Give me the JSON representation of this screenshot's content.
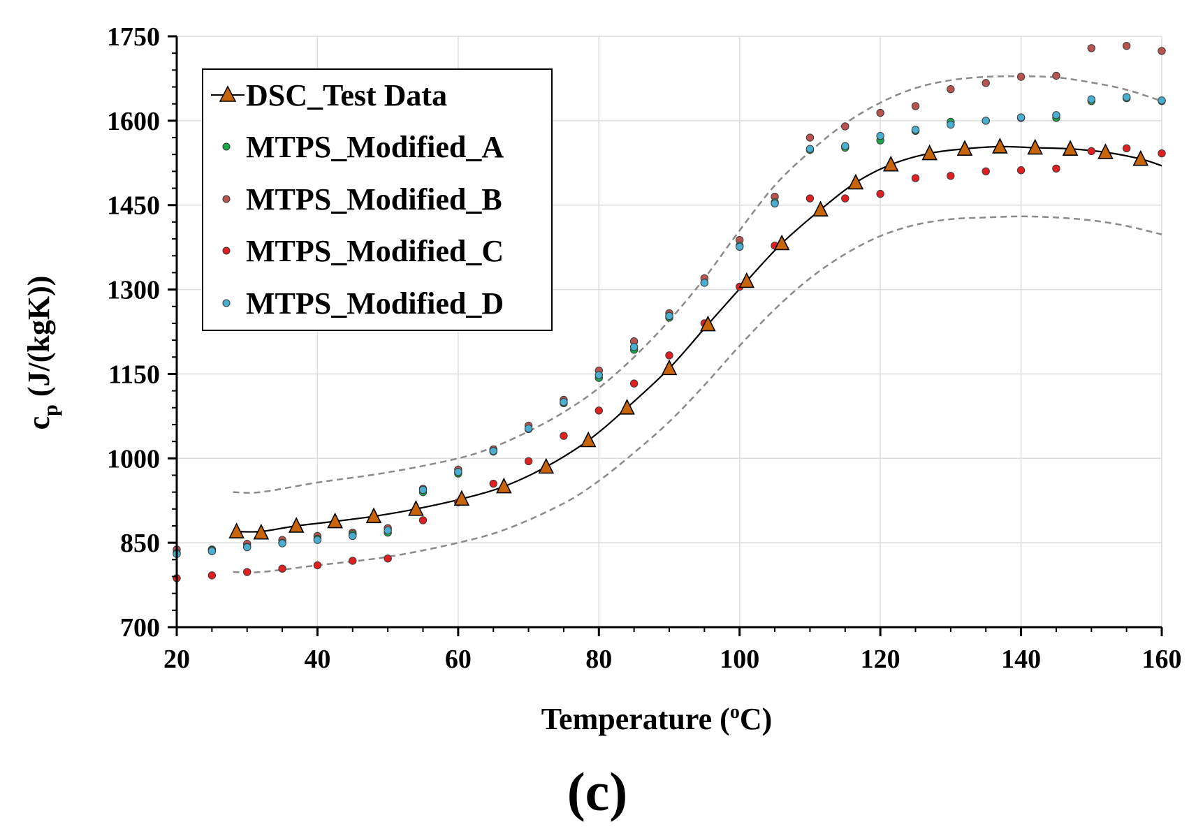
{
  "chart_data": {
    "type": "scatter",
    "xlabel": "Temperature (",
    "xlabel_sup": "o",
    "xlabel_tail": "C)",
    "ylabel_main": "c",
    "ylabel_sub": "p",
    "ylabel_tail": " (J/(kgK))",
    "panel_label": "(c)",
    "xlim": [
      20,
      160
    ],
    "ylim": [
      700,
      1750
    ],
    "x_ticks": [
      "20",
      "40",
      "60",
      "80",
      "100",
      "120",
      "140",
      "160"
    ],
    "y_ticks": [
      "700",
      "850",
      "1000",
      "1150",
      "1300",
      "1450",
      "1600",
      "1750"
    ],
    "grid": true,
    "legend_position": "top-left",
    "series": [
      {
        "name": "DSC_Test Data",
        "marker": "triangle",
        "color": "#c8650a",
        "x": [
          28.5,
          32,
          37,
          42.5,
          48,
          54,
          60.5,
          66.5,
          72.5,
          78.5,
          84,
          90,
          95.5,
          101,
          106,
          111.5,
          116.5,
          121.5,
          127,
          132,
          137,
          142,
          147,
          152,
          157
        ],
        "y": [
          870,
          868,
          880,
          888,
          897,
          910,
          928,
          950,
          985,
          1032,
          1090,
          1160,
          1238,
          1315,
          1382,
          1442,
          1490,
          1522,
          1542,
          1550,
          1554,
          1552,
          1550,
          1544,
          1532
        ]
      },
      {
        "name": "MTPS_Modified_A",
        "marker": "circle",
        "color": "#1aa64a",
        "x": [
          20,
          25,
          30,
          35,
          40,
          45,
          50,
          55,
          60,
          65,
          70,
          75,
          80,
          85,
          90,
          95,
          100,
          105,
          110,
          115,
          120,
          125,
          130,
          135,
          140,
          145,
          150,
          155,
          160
        ],
        "y": [
          832,
          837,
          843,
          850,
          857,
          865,
          868,
          940,
          973,
          1012,
          1052,
          1098,
          1143,
          1193,
          1250,
          1312,
          1378,
          1455,
          1548,
          1552,
          1565,
          1582,
          1598,
          1600,
          1605,
          1605,
          1635,
          1640,
          1635
        ]
      },
      {
        "name": "MTPS_Modified_B",
        "marker": "circle",
        "color": "#b85450",
        "x": [
          20,
          25,
          30,
          35,
          40,
          45,
          50,
          55,
          60,
          65,
          70,
          75,
          80,
          85,
          90,
          95,
          100,
          105,
          110,
          115,
          120,
          125,
          130,
          135,
          140,
          145,
          150,
          155,
          160
        ],
        "y": [
          838,
          838,
          848,
          855,
          862,
          868,
          876,
          946,
          980,
          1016,
          1058,
          1104,
          1156,
          1208,
          1258,
          1320,
          1388,
          1465,
          1570,
          1590,
          1614,
          1626,
          1656,
          1667,
          1678,
          1680,
          1729,
          1733,
          1724
        ]
      },
      {
        "name": "MTPS_Modified_C",
        "marker": "circle",
        "color": "#e02020",
        "x": [
          20,
          25,
          30,
          35,
          40,
          45,
          50,
          55,
          60,
          65,
          70,
          75,
          80,
          85,
          90,
          95,
          100,
          105,
          110,
          115,
          120,
          125,
          130,
          135,
          140,
          145,
          150,
          155,
          160
        ],
        "y": [
          787,
          792,
          798,
          804,
          810,
          818,
          822,
          890,
          922,
          955,
          995,
          1040,
          1085,
          1133,
          1183,
          1240,
          1305,
          1378,
          1462,
          1462,
          1470,
          1498,
          1502,
          1510,
          1512,
          1515,
          1546,
          1551,
          1542
        ]
      },
      {
        "name": "MTPS_Modified_D",
        "marker": "circle",
        "color": "#4aaed0",
        "x": [
          20,
          25,
          30,
          35,
          40,
          45,
          50,
          55,
          60,
          65,
          70,
          75,
          80,
          85,
          90,
          95,
          100,
          105,
          110,
          115,
          120,
          125,
          130,
          135,
          140,
          145,
          150,
          155,
          160
        ],
        "y": [
          830,
          835,
          842,
          849,
          855,
          862,
          872,
          944,
          976,
          1013,
          1053,
          1100,
          1148,
          1198,
          1253,
          1312,
          1376,
          1453,
          1550,
          1555,
          1573,
          1584,
          1593,
          1600,
          1606,
          1610,
          1638,
          1642,
          1636
        ]
      }
    ],
    "fit_curve": {
      "x": [
        28.5,
        32,
        37,
        42.5,
        48,
        54,
        60.5,
        66.5,
        72.5,
        78.5,
        84,
        90,
        95.5,
        101,
        106,
        111.5,
        116.5,
        121.5,
        127,
        132,
        137,
        142,
        147,
        152,
        157,
        160
      ],
      "y": [
        870,
        870,
        880,
        888,
        897,
        910,
        928,
        950,
        985,
        1032,
        1090,
        1160,
        1238,
        1315,
        1382,
        1442,
        1490,
        1522,
        1542,
        1550,
        1554,
        1552,
        1550,
        1544,
        1532,
        1520
      ]
    },
    "upper_bound": {
      "x": [
        28,
        32,
        40,
        50,
        60,
        65,
        70,
        75,
        80,
        85,
        90,
        95,
        100,
        105,
        110,
        115,
        120,
        125,
        130,
        135,
        140,
        145,
        150,
        155,
        160
      ],
      "y": [
        940,
        940,
        957,
        975,
        1000,
        1020,
        1048,
        1082,
        1125,
        1180,
        1245,
        1320,
        1405,
        1485,
        1545,
        1595,
        1632,
        1658,
        1672,
        1678,
        1679,
        1677,
        1668,
        1655,
        1635
      ]
    },
    "lower_bound": {
      "x": [
        28,
        32,
        40,
        50,
        60,
        67,
        75,
        80,
        85,
        90,
        95,
        100,
        105,
        110,
        115,
        120,
        125,
        130,
        135,
        140,
        145,
        150,
        155,
        160
      ],
      "y": [
        798,
        798,
        810,
        825,
        850,
        875,
        920,
        960,
        1010,
        1065,
        1130,
        1200,
        1265,
        1320,
        1363,
        1395,
        1415,
        1425,
        1428,
        1430,
        1428,
        1423,
        1413,
        1398
      ]
    }
  }
}
